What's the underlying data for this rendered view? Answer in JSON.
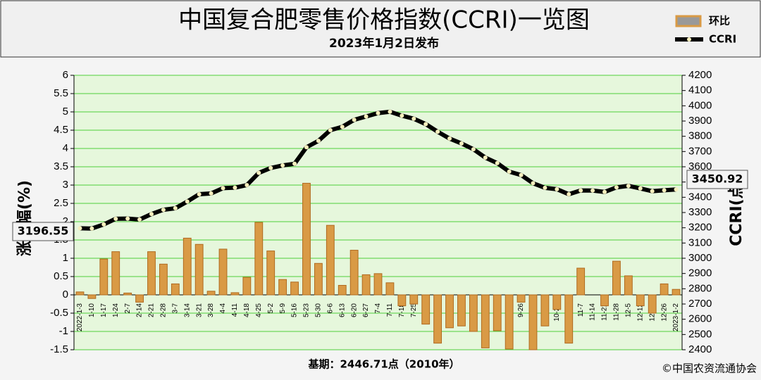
{
  "chart_data": {
    "type": "combo",
    "title": "中国复合肥零售价格指数(CCRI)一览图",
    "subtitle": "2023年1月2日发布",
    "ylabel": "涨跌幅(%)",
    "y2label": "CCRI(点)",
    "footnote": "基期：2446.71点（2010年）",
    "source": "©中国农资流通协会",
    "categories": [
      "2022-1-3",
      "1-10",
      "1-17",
      "1-24",
      "2-7",
      "2-14",
      "2-21",
      "2-28",
      "3-7",
      "3-14",
      "3-21",
      "3-28",
      "4-4",
      "4-11",
      "4-18",
      "4-25",
      "5-2",
      "5-9",
      "5-16",
      "5-23",
      "5-30",
      "6-6",
      "6-13",
      "6-20",
      "6-27",
      "7-4",
      "7-11",
      "7-18",
      "7-25",
      "8-1",
      "8-8",
      "8-15",
      "8-22",
      "8-29",
      "9-5",
      "9-12",
      "9-19",
      "9-26",
      "10-10",
      "10-17",
      "10-24",
      "10-31",
      "11-7",
      "11-14",
      "11-21",
      "11-28",
      "12-5",
      "12-12",
      "12-19",
      "12-26",
      "2023-1-2"
    ],
    "series": [
      {
        "name": "环比",
        "type": "bar",
        "axis": "y",
        "color": "#d99a45",
        "values": [
          0.08,
          -0.1,
          0.98,
          1.18,
          0.05,
          -0.2,
          1.18,
          0.84,
          0.3,
          1.55,
          1.38,
          0.1,
          1.25,
          0.06,
          0.48,
          1.98,
          1.2,
          0.42,
          0.35,
          3.05,
          0.86,
          1.9,
          0.26,
          1.22,
          0.55,
          0.58,
          0.33,
          -0.3,
          -0.25,
          -0.8,
          -1.32,
          -0.9,
          -0.85,
          -1.0,
          -1.45,
          -0.98,
          -1.48,
          -0.2,
          -1.5,
          -0.85,
          -0.4,
          -1.32,
          0.73,
          0.0,
          -0.3,
          0.92,
          0.52,
          -0.3,
          -0.5,
          0.3,
          0.15
        ]
      },
      {
        "name": "CCRI",
        "type": "line",
        "axis": "y2",
        "color": "#000000",
        "values": [
          3196.55,
          3195,
          3222,
          3259,
          3260,
          3254,
          3290,
          3318,
          3328,
          3372,
          3420,
          3425,
          3460,
          3463,
          3480,
          3560,
          3592,
          3609,
          3620,
          3728,
          3770,
          3840,
          3862,
          3908,
          3930,
          3952,
          3961,
          3935,
          3915,
          3880,
          3830,
          3785,
          3753,
          3715,
          3660,
          3624,
          3568,
          3546,
          3492,
          3462,
          3453,
          3420,
          3445,
          3444,
          3435,
          3465,
          3475,
          3458,
          3440,
          3446,
          3450.92
        ]
      }
    ],
    "ylim": [
      -1.5,
      6
    ],
    "yticks": [
      -1.5,
      -1,
      -0.5,
      0,
      0.5,
      1,
      1.5,
      2,
      2.5,
      3,
      3.5,
      4,
      4.5,
      5,
      5.5,
      6
    ],
    "y2lim": [
      2400,
      4200
    ],
    "y2ticks": [
      2400,
      2500,
      2600,
      2700,
      2800,
      2900,
      3000,
      3100,
      3200,
      3300,
      3400,
      3500,
      3600,
      3700,
      3800,
      3900,
      4000,
      4100,
      4200
    ],
    "grid": true
  }
}
